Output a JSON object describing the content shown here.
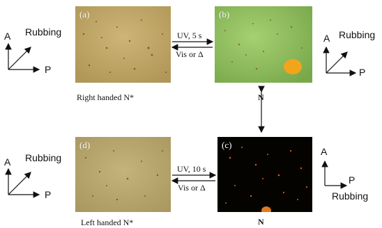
{
  "panels": {
    "a": {
      "letter": "(a)",
      "caption": "Right handed N*",
      "bg": "#c0a86a"
    },
    "b": {
      "letter": "(b)",
      "caption": "N",
      "bg": "#90c060"
    },
    "c": {
      "letter": "(c)",
      "caption": "N",
      "bg": "#000000"
    },
    "d": {
      "letter": "(d)",
      "caption": "Left handed N*",
      "bg": "#b7a66e"
    }
  },
  "top_arrows": {
    "forward": "UV, 5 s",
    "reverse": "Vis or Δ"
  },
  "bottom_arrows": {
    "forward": "UV, 10 s",
    "reverse": "Vis or Δ"
  },
  "axes": {
    "top_left": {
      "a": "A",
      "p": "P",
      "rubbing": "Rubbing"
    },
    "top_right": {
      "a": "A",
      "p": "P",
      "rubbing": "Rubbing"
    },
    "bottom_left": {
      "a": "A",
      "p": "P",
      "rubbing": "Rubbing"
    },
    "bottom_right": {
      "a": "A",
      "p": "P",
      "rubbing": "Rubbing"
    }
  }
}
